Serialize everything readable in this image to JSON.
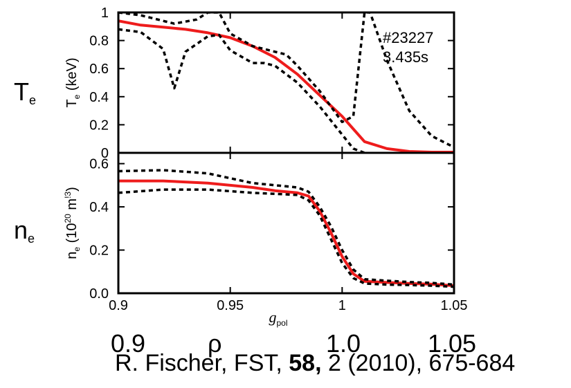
{
  "overlay": {
    "te_symbol": "T",
    "te_sub": "e",
    "ne_symbol": "n",
    "ne_sub": "e",
    "rho_ticks": [
      "0.9",
      "1.0",
      "1.05"
    ],
    "rho_symbol": "ρ",
    "citation": {
      "authors": "R. Fischer, FST, ",
      "volume": "58,",
      "rest": " 2 (2010), 675-684"
    }
  },
  "chart_data": [
    {
      "type": "line",
      "panel": "top",
      "ylabel_main": "T",
      "ylabel_sub": "e",
      "ylabel_unit": " (keV)",
      "ylim": [
        0,
        1
      ],
      "yticks": [
        "0",
        "0.2",
        "0.4",
        "0.6",
        "0.8",
        "1"
      ],
      "xlim": [
        0.9,
        1.05
      ],
      "annotation": [
        "#23227",
        "3.435s"
      ],
      "colors": {
        "fit": "#ee1c1c",
        "band": "#000000"
      },
      "series": [
        {
          "style": "solid-red",
          "x": [
            0.9,
            0.91,
            0.92,
            0.93,
            0.94,
            0.95,
            0.96,
            0.97,
            0.98,
            0.99,
            1.0,
            1.01,
            1.02,
            1.03,
            1.04,
            1.05
          ],
          "y": [
            0.94,
            0.91,
            0.895,
            0.88,
            0.855,
            0.82,
            0.76,
            0.68,
            0.56,
            0.41,
            0.26,
            0.08,
            0.03,
            0.01,
            0.005,
            0.005
          ]
        },
        {
          "style": "dotted-upper",
          "x": [
            0.9,
            0.91,
            0.915,
            0.925,
            0.935,
            0.94,
            0.945,
            0.95,
            0.96,
            0.97,
            0.975,
            0.98,
            0.99,
            1.0,
            1.005,
            1.01,
            1.0125,
            1.02,
            1.03,
            1.04,
            1.05
          ],
          "y": [
            1.0,
            0.98,
            0.96,
            0.92,
            0.95,
            1.0,
            1.0,
            0.85,
            0.76,
            0.72,
            0.7,
            0.62,
            0.44,
            0.22,
            0.26,
            1.0,
            1.0,
            0.66,
            0.3,
            0.12,
            0.04
          ]
        },
        {
          "style": "dotted-lower",
          "x": [
            0.9,
            0.91,
            0.92,
            0.925,
            0.93,
            0.94,
            0.945,
            0.95,
            0.96,
            0.965,
            0.97,
            0.98,
            0.99,
            1.0,
            1.005,
            1.01
          ],
          "y": [
            0.88,
            0.86,
            0.74,
            0.46,
            0.72,
            0.83,
            0.84,
            0.73,
            0.64,
            0.64,
            0.62,
            0.5,
            0.33,
            0.13,
            0.03,
            0.0
          ]
        }
      ]
    },
    {
      "type": "line",
      "panel": "bottom",
      "ylabel_main": "n",
      "ylabel_sub": "e",
      "ylabel_unit": " (10",
      "ylabel_exp1": "20",
      "ylabel_mid": " m",
      "ylabel_exp2": "!3",
      "ylabel_end": ")",
      "ylim": [
        0,
        0.65
      ],
      "yticks": [
        "0.0",
        "0.2",
        "0.4",
        "0.6"
      ],
      "xlim": [
        0.9,
        1.05
      ],
      "xticks": [
        "0.9",
        "0.95",
        "1",
        "1.05"
      ],
      "xlabel_main": "g",
      "xlabel_sub": "pol",
      "colors": {
        "fit": "#ee1c1c",
        "band": "#000000"
      },
      "series": [
        {
          "style": "solid-red",
          "x": [
            0.9,
            0.92,
            0.94,
            0.96,
            0.97,
            0.98,
            0.985,
            0.99,
            0.995,
            1.0,
            1.005,
            1.01,
            1.02,
            1.03,
            1.04,
            1.05
          ],
          "y": [
            0.52,
            0.52,
            0.51,
            0.49,
            0.475,
            0.465,
            0.45,
            0.38,
            0.28,
            0.17,
            0.09,
            0.055,
            0.05,
            0.045,
            0.042,
            0.035
          ]
        },
        {
          "style": "dotted-upper",
          "x": [
            0.9,
            0.92,
            0.94,
            0.96,
            0.97,
            0.98,
            0.985,
            0.99,
            0.995,
            1.0,
            1.005,
            1.01,
            1.02,
            1.03,
            1.04,
            1.05
          ],
          "y": [
            0.565,
            0.57,
            0.555,
            0.51,
            0.5,
            0.49,
            0.47,
            0.4,
            0.31,
            0.2,
            0.11,
            0.065,
            0.058,
            0.052,
            0.048,
            0.04
          ]
        },
        {
          "style": "dotted-lower",
          "x": [
            0.9,
            0.92,
            0.94,
            0.96,
            0.97,
            0.98,
            0.985,
            0.99,
            0.995,
            1.0,
            1.005,
            1.01,
            1.02,
            1.03,
            1.04,
            1.05
          ],
          "y": [
            0.465,
            0.48,
            0.48,
            0.465,
            0.46,
            0.455,
            0.43,
            0.36,
            0.25,
            0.14,
            0.07,
            0.045,
            0.04,
            0.038,
            0.035,
            0.03
          ]
        }
      ]
    }
  ]
}
